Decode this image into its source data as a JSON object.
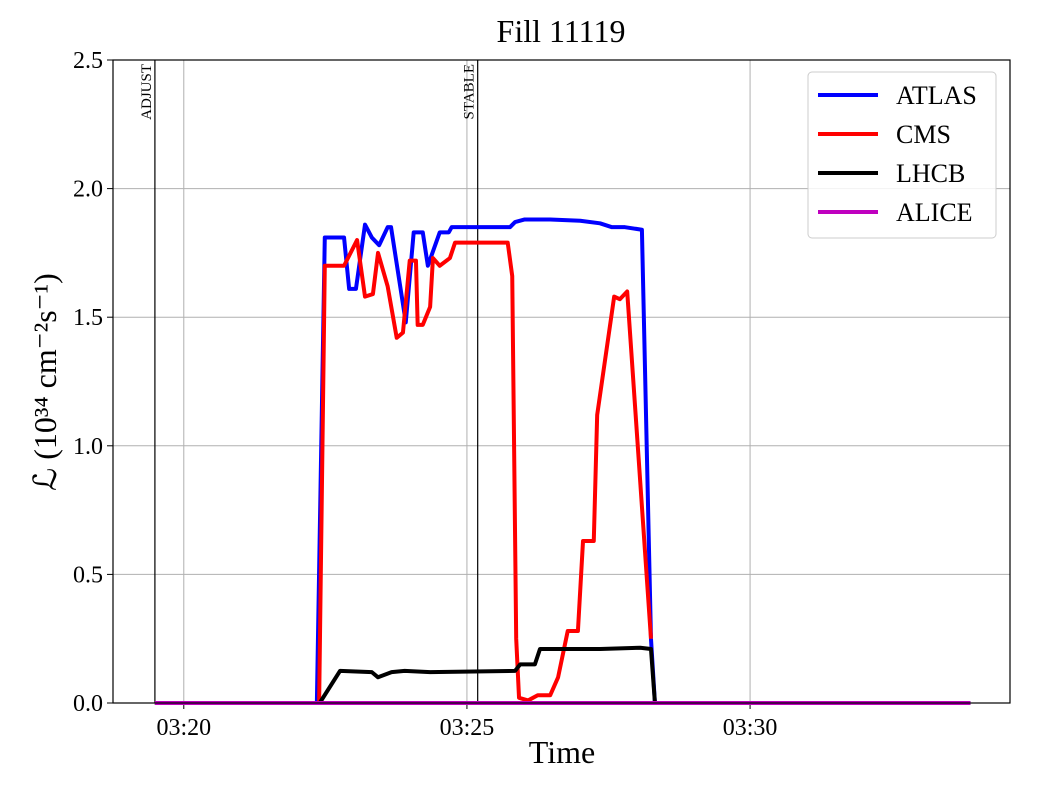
{
  "chart_data": {
    "type": "line",
    "title": "Fill 11119",
    "x_label": "Time",
    "y_label": "ℒ (10³⁴ cm⁻²s⁻¹)",
    "xlim": [
      18.75,
      34.59
    ],
    "xticks": [
      {
        "value": 20,
        "label": "03:20"
      },
      {
        "value": 25,
        "label": "03:25"
      },
      {
        "value": 30,
        "label": "03:30"
      }
    ],
    "ylim": [
      0,
      2.5
    ],
    "yticks": [
      {
        "value": 0,
        "label": "0.0"
      },
      0.5,
      {
        "value": 1,
        "label": "1.0"
      },
      1.5,
      {
        "value": 2,
        "label": "2.0"
      },
      2.5
    ],
    "grid": true,
    "legend": "upper right",
    "annotations": [
      {
        "text": "ADJUST",
        "x": 19.49
      },
      {
        "text": "STABLE",
        "x": 25.19
      }
    ],
    "series": [
      {
        "name": "ATLAS",
        "color": "#0000ff",
        "x": [
          19.49,
          22.35,
          22.49,
          22.83,
          22.92,
          23.04,
          23.2,
          23.32,
          23.45,
          23.6,
          23.66,
          23.92,
          24.06,
          24.22,
          24.31,
          24.52,
          24.68,
          24.73,
          25.76,
          25.85,
          26.02,
          26.47,
          27.0,
          27.35,
          27.56,
          27.79,
          28.09,
          28.25,
          28.32,
          33.89
        ],
        "values": [
          0,
          0,
          1.81,
          1.81,
          1.61,
          1.61,
          1.86,
          1.81,
          1.78,
          1.85,
          1.85,
          1.48,
          1.83,
          1.83,
          1.7,
          1.83,
          1.83,
          1.85,
          1.85,
          1.87,
          1.88,
          1.88,
          1.875,
          1.865,
          1.85,
          1.85,
          1.84,
          0.25,
          0,
          0
        ]
      },
      {
        "name": "CMS",
        "color": "#ff0000",
        "x": [
          19.49,
          22.39,
          22.49,
          22.83,
          23.06,
          23.2,
          23.34,
          23.43,
          23.6,
          23.76,
          23.87,
          23.99,
          24.1,
          24.13,
          24.22,
          24.35,
          24.4,
          24.52,
          24.7,
          24.79,
          25.72,
          25.8,
          25.87,
          25.92,
          26.08,
          26.25,
          26.47,
          26.61,
          26.78,
          26.96,
          27.05,
          27.24,
          27.3,
          27.6,
          27.7,
          27.83,
          28.25
        ],
        "values": [
          0,
          0,
          1.7,
          1.7,
          1.8,
          1.58,
          1.59,
          1.75,
          1.62,
          1.42,
          1.44,
          1.72,
          1.72,
          1.47,
          1.47,
          1.54,
          1.73,
          1.7,
          1.73,
          1.79,
          1.79,
          1.66,
          0.25,
          0.02,
          0.01,
          0.03,
          0.03,
          0.1,
          0.28,
          0.28,
          0.63,
          0.63,
          1.12,
          1.58,
          1.57,
          1.6,
          0.25
        ]
      },
      {
        "name": "LHCB",
        "color": "#000000",
        "x": [
          19.49,
          22.4,
          22.76,
          23.32,
          23.43,
          23.67,
          23.9,
          24.35,
          25.85,
          25.94,
          26.2,
          26.29,
          27.35,
          28.06,
          28.25,
          28.32,
          33.89
        ],
        "values": [
          0,
          0,
          0.125,
          0.12,
          0.1,
          0.12,
          0.125,
          0.12,
          0.125,
          0.15,
          0.15,
          0.21,
          0.21,
          0.215,
          0.21,
          0,
          0
        ]
      },
      {
        "name": "ALICE",
        "color": "#bf00bf",
        "x": [
          19.49,
          33.89
        ],
        "values": [
          0,
          0
        ]
      }
    ]
  }
}
